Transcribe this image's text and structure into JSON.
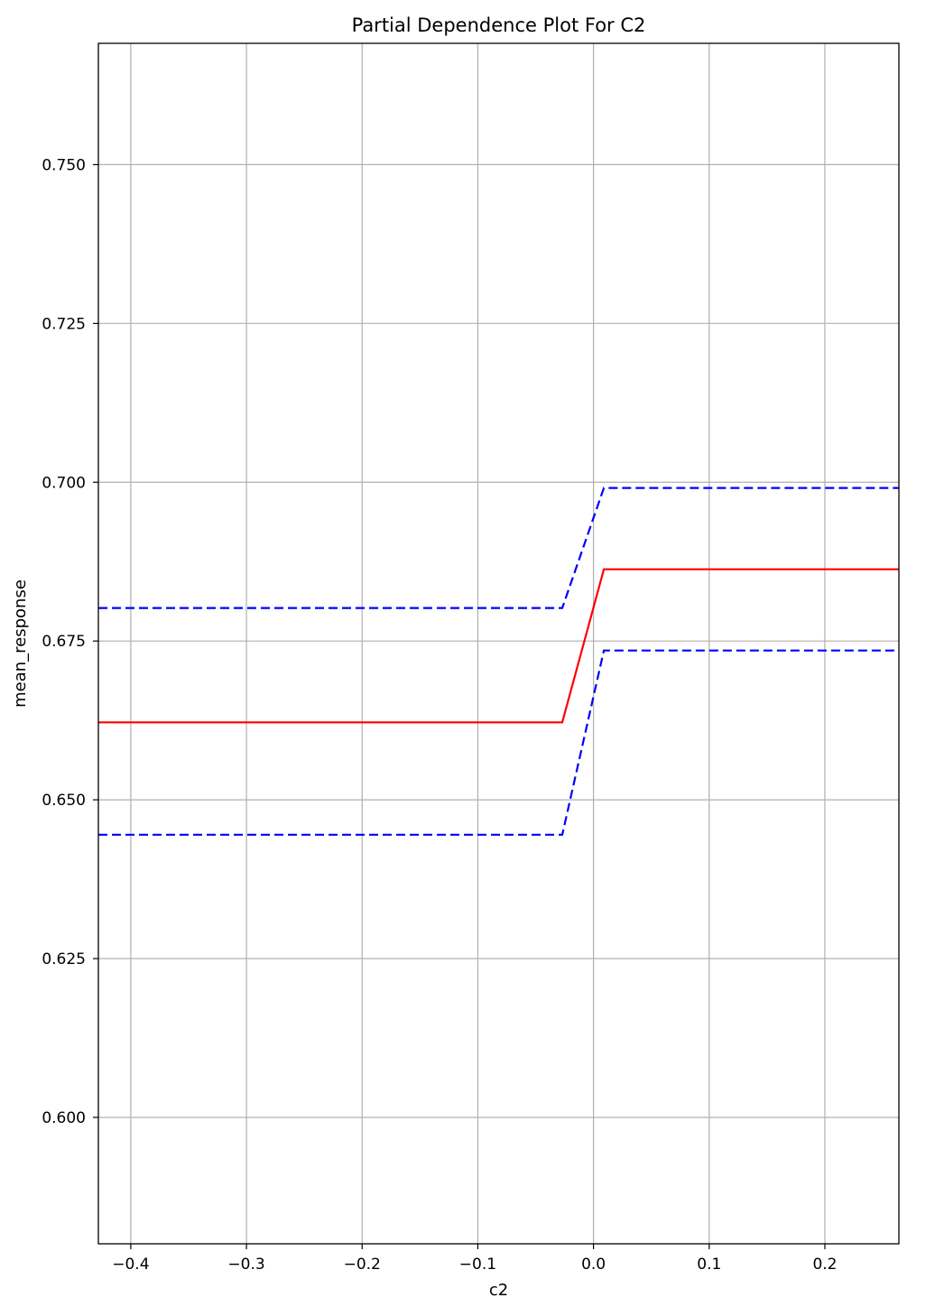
{
  "chart_data": {
    "type": "line",
    "title": "Partial Dependence Plot For C2",
    "xlabel": "c2",
    "ylabel": "mean_response",
    "xlim": [
      -0.428,
      0.264
    ],
    "ylim": [
      0.5801,
      0.7691
    ],
    "grid": true,
    "xticks": [
      -0.4,
      -0.3,
      -0.2,
      -0.1,
      0.0,
      0.1,
      0.2
    ],
    "xtick_labels": [
      "−0.4",
      "−0.3",
      "−0.2",
      "−0.1",
      "0.0",
      "0.1",
      "0.2"
    ],
    "yticks": [
      0.6,
      0.625,
      0.65,
      0.675,
      0.7,
      0.725,
      0.75
    ],
    "ytick_labels": [
      "0.600",
      "0.625",
      "0.650",
      "0.675",
      "0.700",
      "0.725",
      "0.750"
    ],
    "series": [
      {
        "color": "#ff0000",
        "style": "solid",
        "x": [
          -0.428,
          -0.027,
          0.009,
          0.264
        ],
        "y": [
          0.6622,
          0.6622,
          0.6863,
          0.6863
        ]
      },
      {
        "color": "#0000ff",
        "style": "dashed",
        "x": [
          -0.428,
          -0.027,
          0.009,
          0.264
        ],
        "y": [
          0.6802,
          0.6802,
          0.6991,
          0.6991
        ]
      },
      {
        "color": "#0000ff",
        "style": "dashed",
        "x": [
          -0.428,
          -0.027,
          0.009,
          0.264
        ],
        "y": [
          0.6445,
          0.6445,
          0.6735,
          0.6735
        ]
      }
    ]
  }
}
